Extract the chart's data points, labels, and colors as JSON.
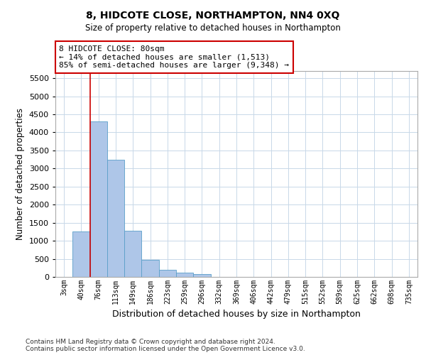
{
  "title": "8, HIDCOTE CLOSE, NORTHAMPTON, NN4 0XQ",
  "subtitle": "Size of property relative to detached houses in Northampton",
  "xlabel": "Distribution of detached houses by size in Northampton",
  "ylabel": "Number of detached properties",
  "footer_line1": "Contains HM Land Registry data © Crown copyright and database right 2024.",
  "footer_line2": "Contains public sector information licensed under the Open Government Licence v3.0.",
  "bar_color": "#aec6e8",
  "bar_edgecolor": "#5a9ec8",
  "grid_color": "#c8d8e8",
  "annotation_box_color": "#cc0000",
  "vline_color": "#cc0000",
  "categories": [
    "3sqm",
    "40sqm",
    "76sqm",
    "113sqm",
    "149sqm",
    "186sqm",
    "223sqm",
    "259sqm",
    "296sqm",
    "332sqm",
    "369sqm",
    "406sqm",
    "442sqm",
    "479sqm",
    "515sqm",
    "552sqm",
    "589sqm",
    "625sqm",
    "662sqm",
    "698sqm",
    "735sqm"
  ],
  "values": [
    0,
    1250,
    4300,
    3250,
    1270,
    480,
    200,
    110,
    70,
    0,
    0,
    0,
    0,
    0,
    0,
    0,
    0,
    0,
    0,
    0,
    0
  ],
  "property_label": "8 HIDCOTE CLOSE: 80sqm",
  "pct_smaller": 14,
  "n_smaller": 1513,
  "pct_larger_semi": 85,
  "n_larger_semi": 9348,
  "vline_x_index": 1.5,
  "ylim": [
    0,
    5700
  ],
  "yticks": [
    0,
    500,
    1000,
    1500,
    2000,
    2500,
    3000,
    3500,
    4000,
    4500,
    5000,
    5500
  ]
}
